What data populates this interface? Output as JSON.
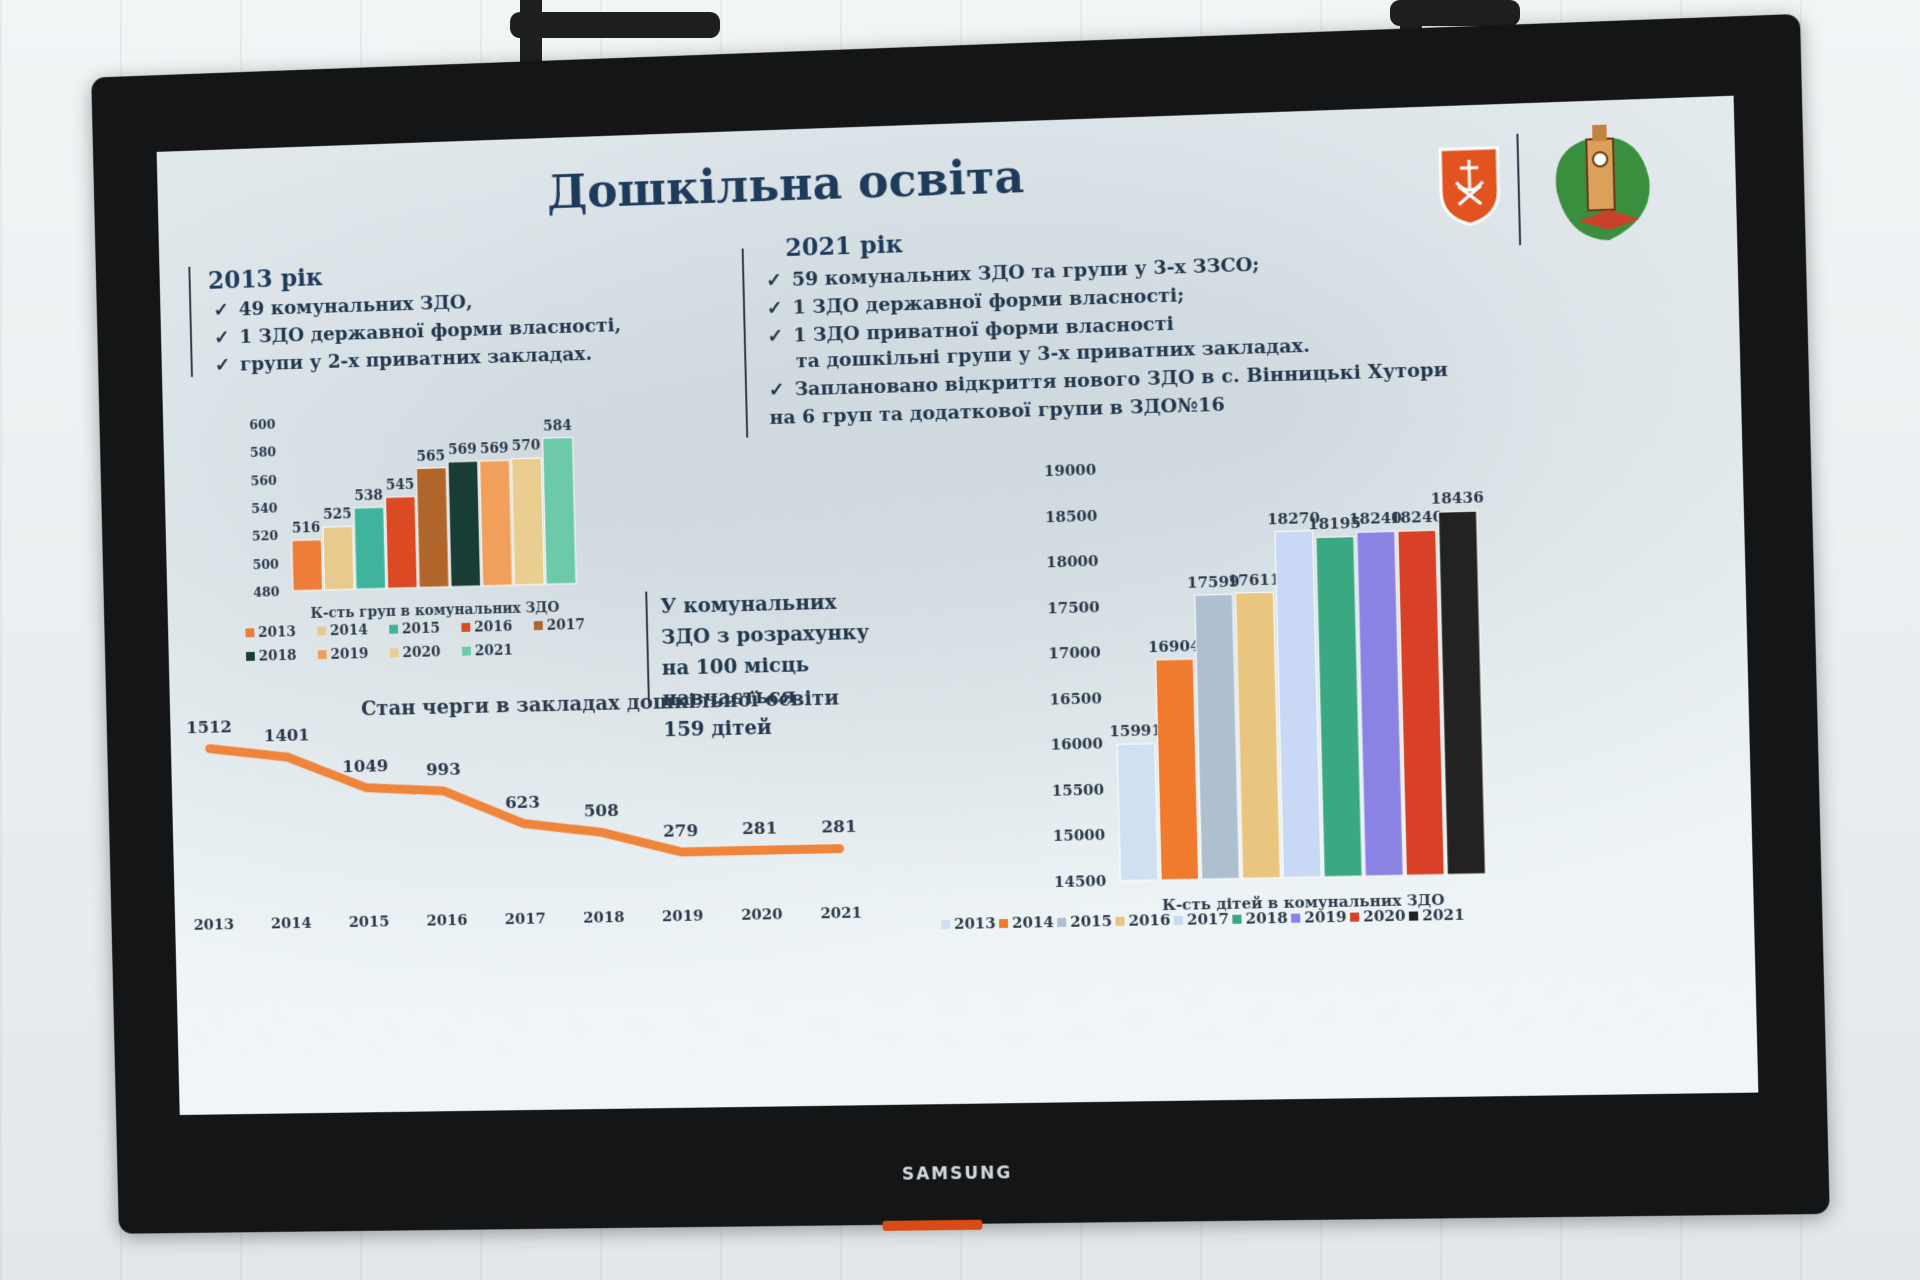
{
  "device": {
    "brand": "SAMSUNG"
  },
  "slide": {
    "title": "Дошкільна освіта",
    "left_block": {
      "heading": "2013  рік",
      "items": [
        "49 комунальних ЗДО,",
        "1 ЗДО державної форми власності,",
        "групи у 2-х приватних закладах."
      ]
    },
    "right_block": {
      "heading": "2021  рік",
      "items": [
        "59 комунальних ЗДО та групи у 3-х ЗЗСО;",
        "1 ЗДО державної форми власності;",
        "1 ЗДО приватної форми власності"
      ],
      "item3_cont": "та дошкільні групи у 3-х  приватних закладах.",
      "item4": "Заплановано відкриття нового ЗДО в с. Вінницькі Хутори",
      "item4_cont": "на 6 груп та додаткової групи в ЗДО№16"
    },
    "mid_text": {
      "lines": [
        "У комунальних",
        "ЗДО з розрахунку",
        "на 100 місць",
        "навчається",
        "159 дітей"
      ]
    }
  },
  "chart_data": [
    {
      "type": "bar",
      "title": "",
      "xlabel": "К-сть груп в комунальних ЗДО",
      "categories": [
        "2013",
        "2014",
        "2015",
        "2016",
        "2017",
        "2018",
        "2019",
        "2020",
        "2021"
      ],
      "values": [
        516,
        525,
        538,
        545,
        565,
        569,
        569,
        570,
        584
      ],
      "colors": [
        "#ee7d3a",
        "#e8c98e",
        "#3fb49c",
        "#db4a22",
        "#b0652a",
        "#173d35",
        "#f0a05a",
        "#e9cd91",
        "#6cc9a9"
      ],
      "yticks": [
        480,
        500,
        520,
        540,
        560,
        580,
        600
      ],
      "ylim": [
        480,
        600
      ],
      "legend": "bottom"
    },
    {
      "type": "line",
      "title": "Стан черги  в закладах дошкільної освіти",
      "x": [
        "2013",
        "2014",
        "2015",
        "2016",
        "2017",
        "2018",
        "2019",
        "2020",
        "2021"
      ],
      "values": [
        1512,
        1401,
        1049,
        993,
        623,
        508,
        279,
        281,
        281
      ],
      "color": "#f0843a",
      "ylim": [
        200,
        1600
      ]
    },
    {
      "type": "bar",
      "title": "",
      "xlabel": "К-сть дітей в комунальних ЗДО",
      "categories": [
        "2013",
        "2014",
        "2015",
        "2016",
        "2017",
        "2018",
        "2019",
        "2020",
        "2021"
      ],
      "values": [
        15991,
        16904,
        17599,
        17611,
        18270,
        18195,
        18240,
        18240,
        18436
      ],
      "colors": [
        "#cfe0f2",
        "#f07a2e",
        "#aebfcf",
        "#e8c680",
        "#c9d9f5",
        "#3aa882",
        "#8b83e4",
        "#d84027",
        "#222222"
      ],
      "yticks": [
        14500,
        15000,
        15500,
        16000,
        16500,
        17000,
        17500,
        18000,
        18500,
        19000
      ],
      "ylim": [
        14500,
        19000
      ],
      "legend": "bottom"
    }
  ]
}
